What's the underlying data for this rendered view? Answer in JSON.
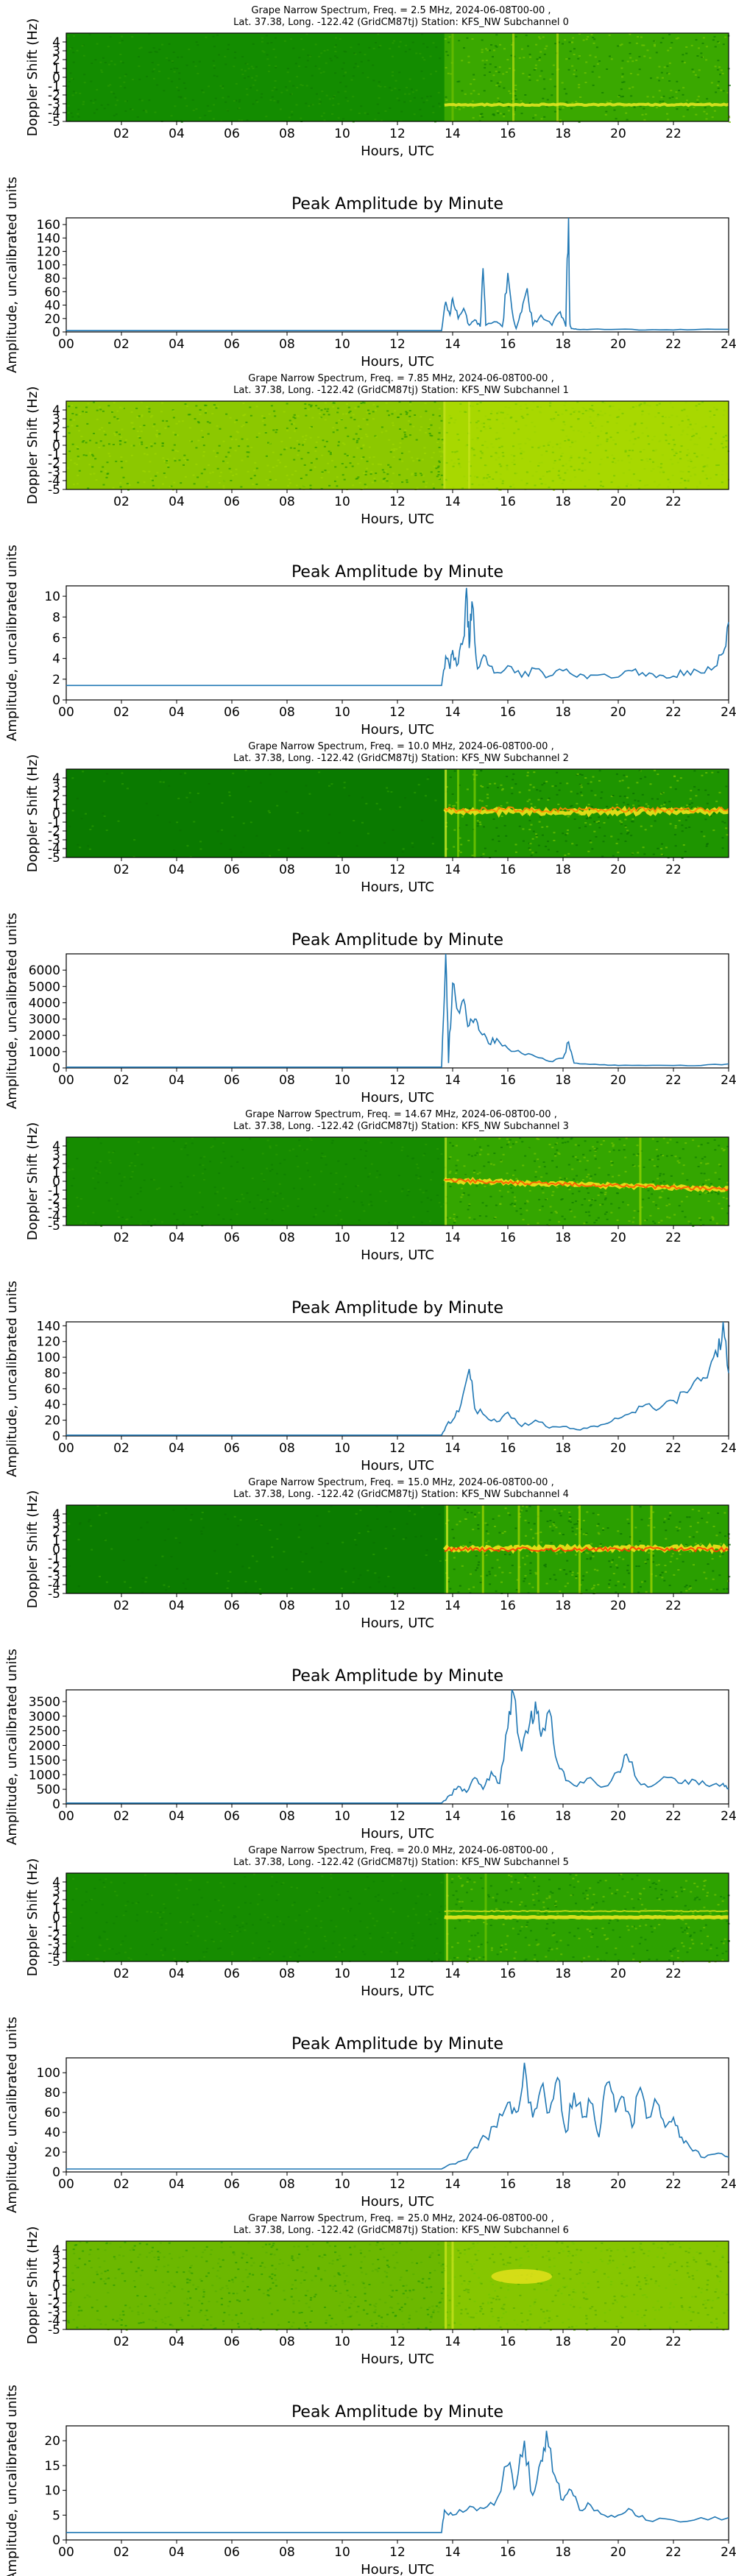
{
  "common": {
    "spec_xlabel": "Hours, UTC",
    "spec_ylabel": "Doppler Shift (Hz)",
    "amp_title": "Peak Amplitude by Minute",
    "amp_xlabel": "Hours, UTC",
    "amp_ylabel": "Amplitude, uncalibrated units",
    "spec_xticks": [
      "02",
      "04",
      "06",
      "08",
      "10",
      "12",
      "14",
      "16",
      "18",
      "20",
      "22"
    ],
    "spec_yticks": [
      "4",
      "3",
      "2",
      "1",
      "0",
      "-1",
      "-2",
      "-3",
      "-4",
      "-5"
    ],
    "amp_xticks": [
      "00",
      "02",
      "04",
      "06",
      "08",
      "10",
      "12",
      "14",
      "16",
      "18",
      "20",
      "22",
      "24"
    ],
    "line_color": "#1f77b4",
    "spec_base_color": "#0a7a00",
    "spec_bright_color": "#e7ef2a",
    "spec_hot_color": "#ff3a00"
  },
  "panels": [
    {
      "title_line1": "Grape Narrow Spectrum, Freq. = 2.5 MHz, 2024-06-08T00-00 ,",
      "title_line2": "Lat.  37.38, Long. -122.42 (GridCM87tj) Station: KFS_NW Subchannel 0"
    },
    {
      "title_line1": "Grape Narrow Spectrum, Freq. = 7.85 MHz, 2024-06-08T00-00 ,",
      "title_line2": "Lat.  37.38, Long. -122.42 (GridCM87tj) Station: KFS_NW Subchannel 1"
    },
    {
      "title_line1": "Grape Narrow Spectrum, Freq. = 10.0 MHz, 2024-06-08T00-00 ,",
      "title_line2": "Lat.  37.38, Long. -122.42 (GridCM87tj) Station: KFS_NW Subchannel 2"
    },
    {
      "title_line1": "Grape Narrow Spectrum, Freq. = 14.67 MHz, 2024-06-08T00-00 ,",
      "title_line2": "Lat.  37.38, Long. -122.42 (GridCM87tj) Station: KFS_NW Subchannel 3"
    },
    {
      "title_line1": "Grape Narrow Spectrum, Freq. = 15.0 MHz, 2024-06-08T00-00 ,",
      "title_line2": "Lat.  37.38, Long. -122.42 (GridCM87tj) Station: KFS_NW Subchannel 4"
    },
    {
      "title_line1": "Grape Narrow Spectrum, Freq. = 20.0 MHz, 2024-06-08T00-00 ,",
      "title_line2": "Lat.  37.38, Long. -122.42 (GridCM87tj) Station: KFS_NW Subchannel 5"
    },
    {
      "title_line1": "Grape Narrow Spectrum, Freq. = 25.0 MHz, 2024-06-08T00-00 ,",
      "title_line2": "Lat.  37.38, Long. -122.42 (GridCM87tj) Station: KFS_NW Subchannel 6"
    }
  ],
  "chart_data": [
    {
      "type": "heatmap",
      "title": "Grape Narrow Spectrum, Freq. = 2.5 MHz, 2024-06-08T00-00 , Lat.  37.38, Long. -122.42 (GridCM87tj) Station: KFS_NW Subchannel 0",
      "xlabel": "Hours, UTC",
      "ylabel": "Doppler Shift (Hz)",
      "xlim": [
        0,
        24
      ],
      "ylim": [
        -5,
        5
      ],
      "xticks": [
        2,
        4,
        6,
        8,
        10,
        12,
        14,
        16,
        18,
        20,
        22
      ],
      "yticks": [
        4,
        3,
        2,
        1,
        0,
        -1,
        -2,
        -3,
        -4,
        -5
      ],
      "features": "uniform green noise; after 13.7 h brighter noise, yellow trace near -3 Hz, bright vertical bands near 16.2 and 17.8 h"
    },
    {
      "type": "line",
      "title": "Peak Amplitude by Minute",
      "xlabel": "Hours, UTC",
      "ylabel": "Amplitude, uncalibrated units",
      "xlim": [
        0,
        24
      ],
      "ylim": [
        0,
        170
      ],
      "yticks": [
        0,
        20,
        40,
        60,
        80,
        100,
        120,
        140,
        160
      ],
      "x": [
        0,
        13.6,
        13.75,
        13.9,
        14.0,
        14.2,
        14.4,
        14.6,
        14.8,
        15.0,
        15.1,
        15.2,
        15.6,
        15.8,
        16.0,
        16.2,
        16.3,
        16.5,
        16.7,
        16.9,
        17.2,
        17.6,
        17.9,
        18.1,
        18.2,
        18.25,
        18.3,
        18.5,
        19,
        20,
        21,
        22,
        23,
        24
      ],
      "y": [
        2,
        2,
        45,
        25,
        50,
        20,
        35,
        10,
        18,
        8,
        95,
        10,
        15,
        8,
        88,
        20,
        5,
        30,
        65,
        10,
        25,
        10,
        30,
        8,
        170,
        12,
        5,
        4,
        4,
        4,
        3,
        3,
        4,
        4
      ]
    },
    {
      "type": "heatmap",
      "title": "Grape Narrow Spectrum, Freq. = 7.85 MHz, 2024-06-08T00-00 , Lat.  37.38, Long. -122.42 (GridCM87tj) Station: KFS_NW Subchannel 1",
      "xlabel": "Hours, UTC",
      "ylabel": "Doppler Shift (Hz)",
      "xlim": [
        0,
        24
      ],
      "ylim": [
        -5,
        5
      ],
      "xticks": [
        2,
        4,
        6,
        8,
        10,
        12,
        14,
        16,
        18,
        20,
        22
      ],
      "yticks": [
        4,
        3,
        2,
        1,
        0,
        -1,
        -2,
        -3,
        -4,
        -5
      ],
      "features": "yellow-green noise throughout; brighter after 13.7 h"
    },
    {
      "type": "line",
      "title": "Peak Amplitude by Minute",
      "xlabel": "Hours, UTC",
      "ylabel": "Amplitude, uncalibrated units",
      "xlim": [
        0,
        24
      ],
      "ylim": [
        0,
        11
      ],
      "yticks": [
        0,
        2,
        4,
        6,
        8,
        10
      ],
      "x": [
        0,
        13.6,
        13.75,
        13.9,
        14.0,
        14.2,
        14.4,
        14.5,
        14.6,
        14.7,
        14.9,
        15.2,
        15.5,
        16,
        16.5,
        17,
        17.5,
        18,
        18.5,
        19,
        20,
        20.5,
        21,
        21.5,
        22,
        22.5,
        23,
        23.5,
        23.8,
        24
      ],
      "y": [
        1.4,
        1.4,
        4.2,
        3.0,
        4.8,
        3.5,
        6.0,
        10.8,
        5.0,
        9.5,
        3.0,
        4.2,
        2.6,
        3.3,
        2.2,
        3.0,
        2.3,
        2.8,
        2.2,
        2.4,
        2.2,
        2.8,
        2.3,
        2.4,
        2.3,
        2.8,
        2.6,
        3.2,
        4.5,
        7.5
      ]
    },
    {
      "type": "heatmap",
      "title": "Grape Narrow Spectrum, Freq. = 10.0 MHz, 2024-06-08T00-00 , Lat.  37.38, Long. -122.42 (GridCM87tj) Station: KFS_NW Subchannel 2",
      "xlabel": "Hours, UTC",
      "ylabel": "Doppler Shift (Hz)",
      "xlim": [
        0,
        24
      ],
      "ylim": [
        -5,
        5
      ],
      "xticks": [
        2,
        4,
        6,
        8,
        10,
        12,
        14,
        16,
        18,
        20,
        22
      ],
      "yticks": [
        4,
        3,
        2,
        1,
        0,
        -1,
        -2,
        -3,
        -4,
        -5
      ],
      "features": "dark green before 13.7 h; strong yellow/red carrier near 0 Hz afterwards with broad spread around 14-16 h"
    },
    {
      "type": "line",
      "title": "Peak Amplitude by Minute",
      "xlabel": "Hours, UTC",
      "ylabel": "Amplitude, uncalibrated units",
      "xlim": [
        0,
        24
      ],
      "ylim": [
        0,
        7000
      ],
      "yticks": [
        0,
        1000,
        2000,
        3000,
        4000,
        5000,
        6000
      ],
      "x": [
        0,
        13.6,
        13.75,
        13.85,
        14.0,
        14.2,
        14.4,
        14.6,
        14.8,
        15.0,
        15.3,
        15.6,
        16.0,
        16.5,
        17.0,
        17.5,
        18.0,
        18.2,
        18.4,
        18.8,
        19.5,
        20,
        21,
        22,
        23,
        24
      ],
      "y": [
        50,
        50,
        7000,
        300,
        5200,
        3500,
        4200,
        2600,
        3000,
        2200,
        1500,
        1800,
        1200,
        900,
        700,
        400,
        600,
        1600,
        300,
        250,
        200,
        150,
        150,
        150,
        150,
        250
      ]
    },
    {
      "type": "heatmap",
      "title": "Grape Narrow Spectrum, Freq. = 14.67 MHz, 2024-06-08T00-00 , Lat.  37.38, Long. -122.42 (GridCM87tj) Station: KFS_NW Subchannel 3",
      "xlabel": "Hours, UTC",
      "ylabel": "Doppler Shift (Hz)",
      "xlim": [
        0,
        24
      ],
      "ylim": [
        -5,
        5
      ],
      "xticks": [
        2,
        4,
        6,
        8,
        10,
        12,
        14,
        16,
        18,
        20,
        22
      ],
      "yticks": [
        4,
        3,
        2,
        1,
        0,
        -1,
        -2,
        -3,
        -4,
        -5
      ],
      "features": "green noise; after 13.7 h yellow/red carrier near 0 Hz drifting slightly negative toward end of day"
    },
    {
      "type": "line",
      "title": "Peak Amplitude by Minute",
      "xlabel": "Hours, UTC",
      "ylabel": "Amplitude, uncalibrated units",
      "xlim": [
        0,
        24
      ],
      "ylim": [
        0,
        145
      ],
      "yticks": [
        0,
        20,
        40,
        60,
        80,
        100,
        120,
        140
      ],
      "x": [
        0,
        13.6,
        13.8,
        14.0,
        14.3,
        14.6,
        14.8,
        15.2,
        15.6,
        16,
        16.5,
        17,
        17.5,
        18,
        18.5,
        19,
        19.5,
        20,
        20.5,
        21,
        21.5,
        22,
        22.5,
        23,
        23.3,
        23.6,
        23.8,
        24
      ],
      "y": [
        1,
        1,
        15,
        20,
        40,
        85,
        35,
        25,
        18,
        30,
        12,
        20,
        10,
        12,
        8,
        12,
        15,
        22,
        30,
        40,
        35,
        45,
        55,
        70,
        85,
        100,
        145,
        80
      ]
    },
    {
      "type": "heatmap",
      "title": "Grape Narrow Spectrum, Freq. = 15.0 MHz, 2024-06-08T00-00 , Lat.  37.38, Long. -122.42 (GridCM87tj) Station: KFS_NW Subchannel 4",
      "xlabel": "Hours, UTC",
      "ylabel": "Doppler Shift (Hz)",
      "xlim": [
        0,
        24
      ],
      "ylim": [
        -5,
        5
      ],
      "xticks": [
        2,
        4,
        6,
        8,
        10,
        12,
        14,
        16,
        18,
        20,
        22
      ],
      "yticks": [
        4,
        3,
        2,
        1,
        0,
        -1,
        -2,
        -3,
        -4,
        -5
      ],
      "features": "dark green before 13.7 h; after, many vertical yellow bands and a strong carrier near 0 Hz with red patches around 16-18 h"
    },
    {
      "type": "line",
      "title": "Peak Amplitude by Minute",
      "xlabel": "Hours, UTC",
      "ylabel": "Amplitude, uncalibrated units",
      "xlim": [
        0,
        24
      ],
      "ylim": [
        0,
        3900
      ],
      "yticks": [
        0,
        500,
        1000,
        1500,
        2000,
        2500,
        3000,
        3500
      ],
      "x": [
        0,
        13.6,
        13.9,
        14.2,
        14.5,
        14.8,
        15.1,
        15.4,
        15.7,
        16.0,
        16.2,
        16.5,
        16.8,
        17.0,
        17.2,
        17.5,
        17.8,
        18.1,
        18.5,
        19.0,
        19.5,
        20.0,
        20.3,
        20.7,
        21.2,
        21.8,
        22.3,
        22.8,
        23.3,
        23.8,
        24
      ],
      "y": [
        30,
        30,
        300,
        600,
        400,
        900,
        500,
        1100,
        700,
        2600,
        3800,
        1800,
        2800,
        3500,
        2300,
        3200,
        1400,
        800,
        600,
        900,
        600,
        1100,
        1700,
        800,
        600,
        900,
        700,
        800,
        600,
        700,
        500
      ]
    },
    {
      "type": "heatmap",
      "title": "Grape Narrow Spectrum, Freq. = 20.0 MHz, 2024-06-08T00-00 , Lat.  37.38, Long. -122.42 (GridCM87tj) Station: KFS_NW Subchannel 5",
      "xlabel": "Hours, UTC",
      "ylabel": "Doppler Shift (Hz)",
      "xlim": [
        0,
        24
      ],
      "ylim": [
        -5,
        5
      ],
      "xticks": [
        2,
        4,
        6,
        8,
        10,
        12,
        14,
        16,
        18,
        20,
        22
      ],
      "yticks": [
        4,
        3,
        2,
        1,
        0,
        -1,
        -2,
        -3,
        -4,
        -5
      ],
      "features": "green noise; after 13.7 h yellow carrier band near 0 Hz through the rest of the day"
    },
    {
      "type": "line",
      "title": "Peak Amplitude by Minute",
      "xlabel": "Hours, UTC",
      "ylabel": "Amplitude, uncalibrated units",
      "xlim": [
        0,
        24
      ],
      "ylim": [
        0,
        115
      ],
      "yticks": [
        0,
        20,
        40,
        60,
        80,
        100
      ],
      "x": [
        0,
        13.6,
        14.0,
        14.4,
        14.8,
        15.2,
        15.6,
        16.0,
        16.3,
        16.6,
        16.9,
        17.2,
        17.5,
        17.8,
        18.1,
        18.4,
        18.7,
        19.0,
        19.3,
        19.6,
        19.9,
        20.2,
        20.5,
        20.8,
        21.1,
        21.4,
        21.7,
        22.0,
        22.3,
        22.6,
        23.0,
        23.5,
        24
      ],
      "y": [
        3,
        3,
        8,
        12,
        25,
        35,
        45,
        70,
        60,
        110,
        55,
        85,
        60,
        95,
        40,
        80,
        55,
        70,
        35,
        90,
        60,
        75,
        45,
        85,
        55,
        70,
        45,
        55,
        35,
        25,
        15,
        18,
        15
      ]
    },
    {
      "type": "heatmap",
      "title": "Grape Narrow Spectrum, Freq. = 25.0 MHz, 2024-06-08T00-00 , Lat.  37.38, Long. -122.42 (GridCM87tj) Station: KFS_NW Subchannel 6",
      "xlabel": "Hours, UTC",
      "ylabel": "Doppler Shift (Hz)",
      "xlim": [
        0,
        24
      ],
      "ylim": [
        -5,
        5
      ],
      "xticks": [
        2,
        4,
        6,
        8,
        10,
        12,
        14,
        16,
        18,
        20,
        22
      ],
      "yticks": [
        4,
        3,
        2,
        1,
        0,
        -1,
        -2,
        -3,
        -4,
        -5
      ],
      "features": "yellow-green noise; bright vertical band at 13.7 h; yellow blob near +1 Hz around 15.5-17.5 h"
    },
    {
      "type": "line",
      "title": "Peak Amplitude by Minute",
      "xlabel": "Hours, UTC",
      "ylabel": "Amplitude, uncalibrated units",
      "xlim": [
        0,
        24
      ],
      "ylim": [
        0,
        23
      ],
      "yticks": [
        0,
        5,
        10,
        15,
        20
      ],
      "x": [
        0,
        13.6,
        13.7,
        14.0,
        14.5,
        15.0,
        15.5,
        16.0,
        16.3,
        16.6,
        16.9,
        17.2,
        17.4,
        17.7,
        18.0,
        18.3,
        18.6,
        19.0,
        19.5,
        20,
        20.5,
        21,
        22,
        23,
        24
      ],
      "y": [
        1.5,
        1.5,
        6,
        5,
        6,
        6.5,
        7,
        15,
        11,
        20,
        9,
        16,
        22,
        13,
        8,
        10,
        6,
        7,
        5,
        5,
        6,
        4,
        4,
        4.5,
        4.5
      ]
    }
  ]
}
